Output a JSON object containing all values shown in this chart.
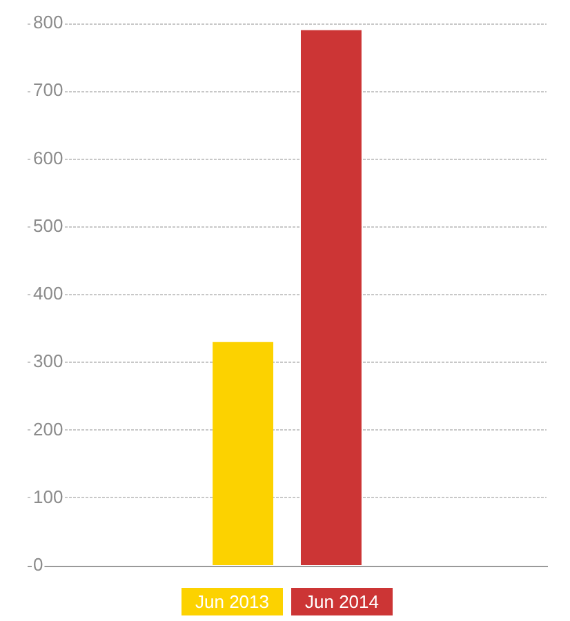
{
  "chart_data": {
    "type": "bar",
    "categories": [
      null
    ],
    "series": [
      {
        "name": "Jun 2013",
        "color": "#fcd200",
        "values": [
          330
        ]
      },
      {
        "name": "Jun 2014",
        "color": "#cc3535",
        "values": [
          790
        ]
      }
    ],
    "ylim": [
      0,
      800
    ],
    "yticks": [
      0,
      100,
      200,
      300,
      400,
      500,
      600,
      700,
      800
    ],
    "grid": "y",
    "legend": "bottom"
  }
}
